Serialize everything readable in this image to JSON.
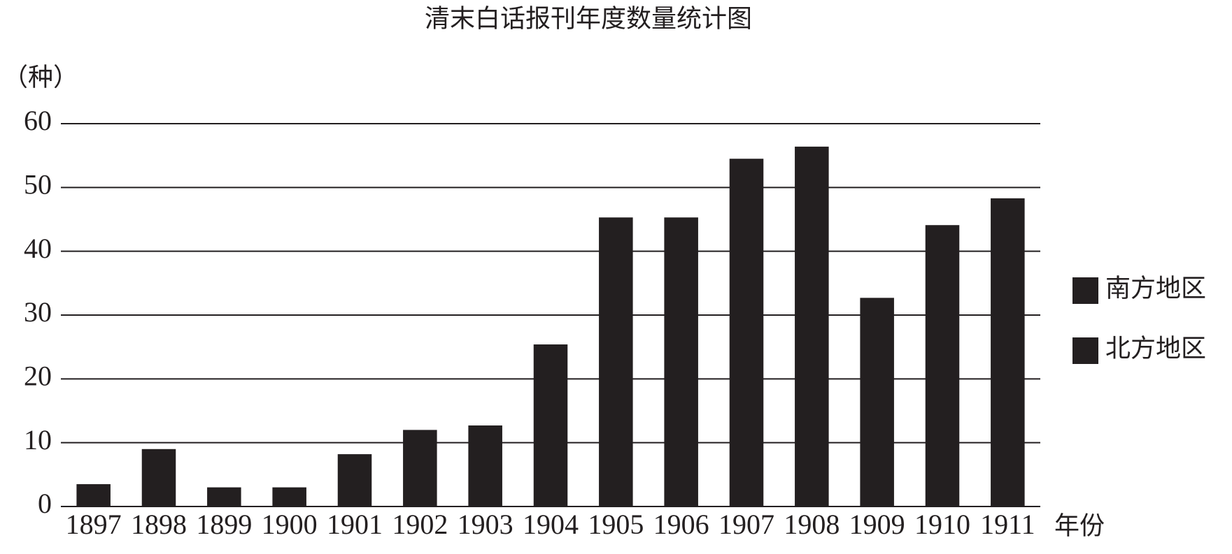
{
  "chart_data": {
    "type": "bar",
    "title": "清末白话报刊年度数量统计图",
    "y_label": "（种）",
    "x_label": "年份",
    "categories": [
      "1897",
      "1898",
      "1899",
      "1900",
      "1901",
      "1902",
      "1903",
      "1904",
      "1905",
      "1906",
      "1907",
      "1908",
      "1909",
      "1910",
      "1911"
    ],
    "values": [
      3.5,
      9.0,
      3.0,
      3.0,
      8.2,
      12.0,
      12.7,
      25.4,
      45.3,
      45.3,
      54.5,
      56.4,
      32.7,
      44.1,
      48.3
    ],
    "color": "#231f20",
    "legend": [
      {
        "name": "南方地区",
        "color": "#231f20"
      },
      {
        "name": "北方地区",
        "color": "#231f20"
      }
    ],
    "ylim": [
      0,
      60
    ],
    "yticks": [
      0,
      10,
      20,
      30,
      40,
      50,
      60
    ],
    "grid": true
  }
}
